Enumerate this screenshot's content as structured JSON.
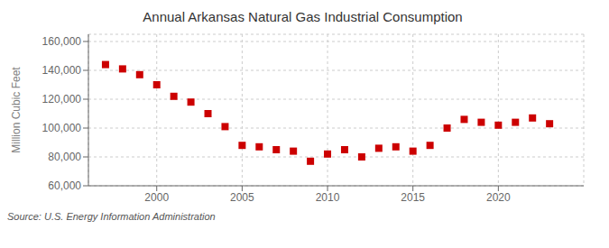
{
  "chart_data": {
    "type": "scatter",
    "title": "Annual Arkansas Natural Gas Industrial Consumption",
    "ylabel": "Million Cubic Feet",
    "annotations": [
      "Source: U.S. Energy Information Administration"
    ],
    "x": [
      1997,
      1998,
      1999,
      2000,
      2001,
      2002,
      2003,
      2004,
      2005,
      2006,
      2007,
      2008,
      2009,
      2010,
      2011,
      2012,
      2013,
      2014,
      2015,
      2016,
      2017,
      2018,
      2019,
      2020,
      2021,
      2022,
      2023
    ],
    "values": [
      144000,
      141000,
      137000,
      130000,
      122000,
      118000,
      110000,
      101000,
      88000,
      87000,
      85000,
      84000,
      77000,
      82000,
      85000,
      80000,
      86000,
      87000,
      84000,
      88000,
      100000,
      106000,
      104000,
      102000,
      104000,
      107000,
      103000
    ],
    "color": "#cc0000",
    "marker": "square",
    "xlim": [
      1996,
      2025
    ],
    "ylim": [
      60000,
      165000
    ],
    "xticks": [
      2000,
      2005,
      2010,
      2015,
      2020
    ],
    "yticks": [
      {
        "value": 60000,
        "label": "60,000"
      },
      {
        "value": 80000,
        "label": "80,000"
      },
      {
        "value": 100000,
        "label": "100,000"
      },
      {
        "value": 120000,
        "label": "120,000"
      },
      {
        "value": 140000,
        "label": "140,000"
      },
      {
        "value": 160000,
        "label": "160,000"
      }
    ],
    "grid": true
  }
}
